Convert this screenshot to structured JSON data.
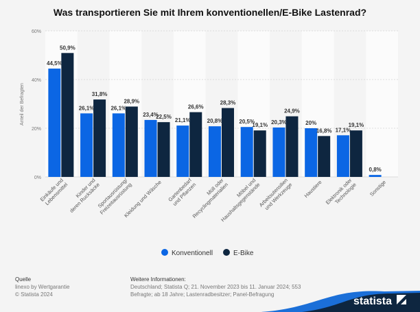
{
  "chart_data": {
    "type": "bar",
    "title": "Was transportieren Sie mit Ihrem konventionellen/E-Bike Lastenrad?",
    "ylabel": "Anteil der Befragten",
    "ylim": [
      0,
      60
    ],
    "yticks": [
      "0%",
      "20%",
      "40%",
      "60%"
    ],
    "grid": true,
    "legend_position": "bottom",
    "categories": [
      [
        "Einkäufe und",
        "Lebensmittel"
      ],
      [
        "Kinder und",
        "deren Rucksäcke"
      ],
      [
        "Sportausrüstung/",
        "Freizeitausrüstung"
      ],
      [
        "Kleidung und Wäsche"
      ],
      [
        "Gartenbedarf",
        "und Pflanzen"
      ],
      [
        "Müll oder",
        "Recyclingmaterialien"
      ],
      [
        "Möbel und",
        "Haushaltsgegenstände"
      ],
      [
        "Arbeitsutensilien",
        "und Werkzeuge"
      ],
      [
        "Haustiere"
      ],
      [
        "Elektronik oder",
        "Technologie"
      ],
      [
        "Sonstige"
      ]
    ],
    "series": [
      {
        "name": "Konventionell",
        "color": "#0b66e4",
        "values": [
          44.5,
          26.1,
          26.1,
          23.4,
          21.1,
          20.8,
          20.5,
          20.3,
          20,
          17.1,
          0.8
        ],
        "labels": [
          "44,5%",
          "26,1%",
          "26,1%",
          "23,4%",
          "21,1%",
          "20,8%",
          "20,5%",
          "20,3%",
          "20%",
          "17,1%",
          "0,8%"
        ]
      },
      {
        "name": "E-Bike",
        "color": "#0e2640",
        "values": [
          50.9,
          31.8,
          28.9,
          22.5,
          26.6,
          28.3,
          19.1,
          24.9,
          16.8,
          19.1,
          null
        ],
        "labels": [
          "50,9%",
          "31,8%",
          "28,9%",
          "22,5%",
          "26,6%",
          "28,3%",
          "19,1%",
          "24,9%",
          "16,8%",
          "19,1%",
          null
        ]
      }
    ]
  },
  "footer": {
    "source_title": "Quelle",
    "source_1": "linexo by Wertgarantie",
    "source_2": "© Statista 2024",
    "info_title": "Weitere Informationen:",
    "info_1": "Deutschland; Statista Q; 21. November 2023 bis 11. Januar 2024; 553",
    "info_2": "Befragte; ab 18 Jahre; Lastenradbesitzer; Panel-Befragung",
    "logo": "statista"
  }
}
